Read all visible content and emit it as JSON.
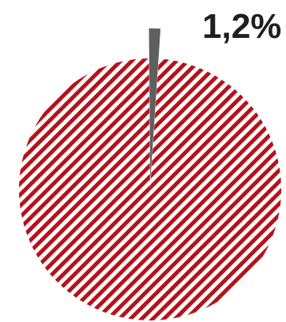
{
  "chart_data": {
    "type": "pie",
    "slices": [
      {
        "value": 98.8,
        "label": "",
        "color": "#b5121b",
        "pattern": "diagonal-stripes"
      },
      {
        "value": 1.2,
        "label": "1,2%",
        "color": "#5f5f5f",
        "pattern": "solid"
      }
    ],
    "data_labels": [
      "1,2%"
    ],
    "legend": "none",
    "title": ""
  }
}
